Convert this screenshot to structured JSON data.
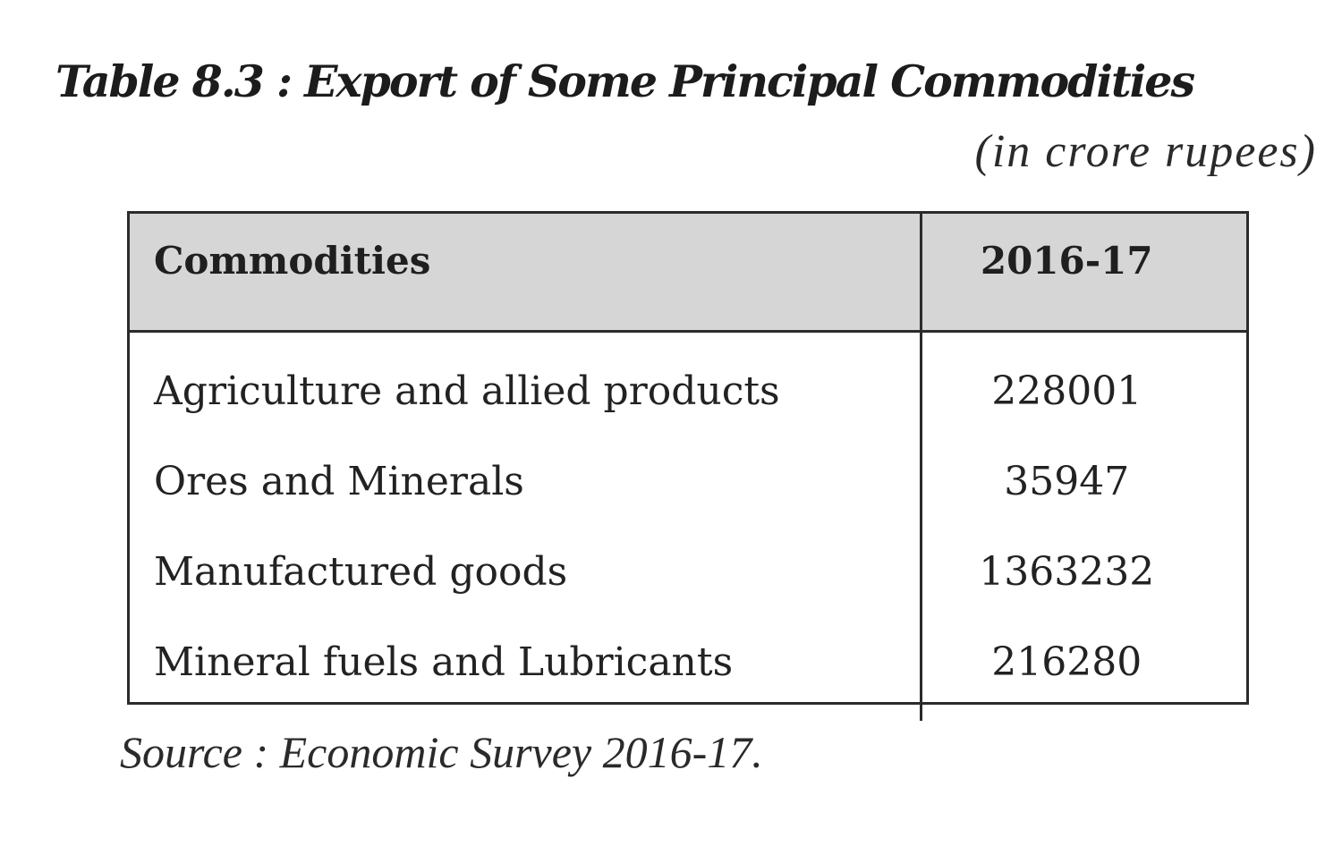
{
  "title": "Table 8.3 : Export of Some Principal Commodities",
  "unit": "(in crore rupees)",
  "table": {
    "headers": [
      "Commodities",
      "2016-17"
    ],
    "rows": [
      {
        "commodity": "Agriculture and allied products",
        "value": "228001"
      },
      {
        "commodity": "Ores and Minerals",
        "value": "35947"
      },
      {
        "commodity": "Manufactured goods",
        "value": "1363232"
      },
      {
        "commodity": "Mineral fuels and Lubricants",
        "value": "216280"
      }
    ]
  },
  "source": "Source :  Economic Survey 2016-17.",
  "colors": {
    "header_background": "#d6d6d6",
    "border": "#2b2b2b",
    "text": "#1f1f1f"
  }
}
